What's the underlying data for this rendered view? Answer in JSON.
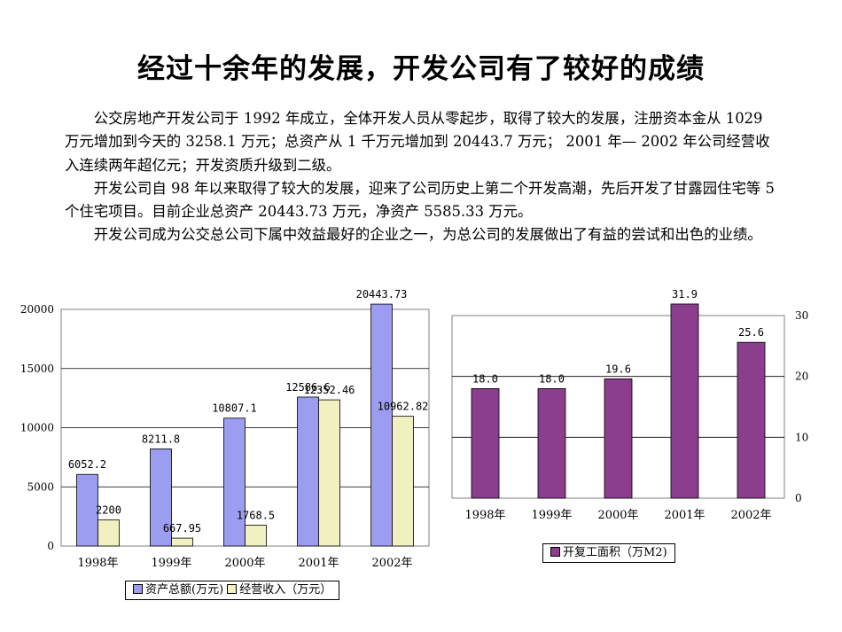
{
  "title": "经过十余年的发展，开发公司有了较好的成绩",
  "paragraphs": [
    "公交房地产开发公司于 1992 年成立，全体开发人员从零起步，取得了较大的发展，注册资本金从 1029 万元增加到今天的 3258.1 万元；总资产从 1 千万元增加到 20443.7 万元； 2001 年— 2002 年公司经营收入连续两年超亿元；开发资质升级到二级。",
    "开发公司自 98 年以来取得了较大的发展，迎来了公司历史上第二个开发高潮，先后开发了甘露园住宅等 5 个住宅项目。目前企业总资产 20443.73 万元，净资产 5585.33 万元。",
    "开发公司成为公交总公司下属中效益最好的企业之一，为总公司的发展做出了有益的尝试和出色的业绩。"
  ],
  "chart_data": [
    {
      "type": "bar",
      "categories": [
        "1998年",
        "1999年",
        "2000年",
        "2001年",
        "2002年"
      ],
      "series": [
        {
          "name": "资产总额(万元)",
          "values": [
            6052.2,
            8211.8,
            10807.1,
            12586.6,
            20443.73
          ],
          "labels": [
            "6052.2",
            "8211.8",
            "10807.1",
            "12586.6",
            "20443.73"
          ],
          "color": "#9c9cf0"
        },
        {
          "name": "经营收入（万元）",
          "values": [
            2200,
            667.95,
            1768.5,
            12352.46,
            10962.82
          ],
          "labels": [
            "2200",
            "667.95",
            "1768.5",
            "12352.46",
            "10962.82"
          ],
          "color": "#f0f0c0"
        }
      ],
      "yticks": [
        0,
        5000,
        10000,
        15000,
        20000
      ],
      "ylim": [
        0,
        20000
      ],
      "y_axis_side": "left",
      "legend": "bottom",
      "grid": true
    },
    {
      "type": "bar",
      "categories": [
        "1998年",
        "1999年",
        "2000年",
        "2001年",
        "2002年"
      ],
      "series": [
        {
          "name": "开复工面积（万M2)",
          "values": [
            18.0,
            18.0,
            19.6,
            31.9,
            25.6
          ],
          "labels": [
            "18.0",
            "18.0",
            "19.6",
            "31.9",
            "25.6"
          ],
          "color": "#8b3d8e"
        }
      ],
      "yticks": [
        0,
        10,
        20,
        30
      ],
      "ylim": [
        0,
        30
      ],
      "y_axis_side": "right",
      "legend": "bottom",
      "grid": true
    }
  ]
}
